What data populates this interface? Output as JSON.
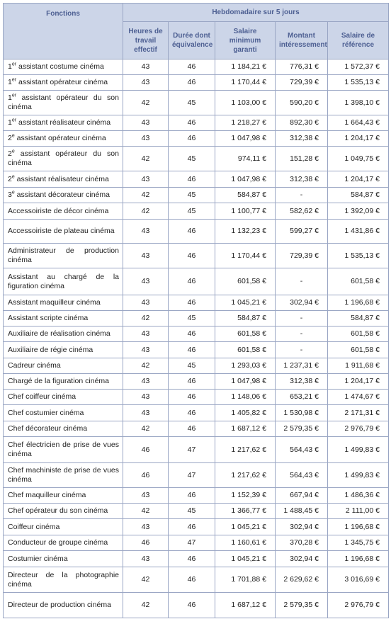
{
  "header": {
    "fonctions": "Fonctions",
    "group": "Hebdomadaire sur 5 jours",
    "columns": [
      "Heures de travail effectif",
      "Durée dont équivalence",
      "Salaire minimum garanti",
      "Montant intéressement",
      "Salaire de référence"
    ]
  },
  "table": {
    "rows": [
      [
        [
          "1",
          "er",
          " assistant costume cinéma"
        ],
        43,
        46,
        "1 184,21 €",
        "776,31 €",
        "1 572,37 €"
      ],
      [
        [
          "1",
          "er",
          " assistant opérateur cinéma"
        ],
        43,
        46,
        "1 170,44 €",
        "729,39 €",
        "1 535,13 €"
      ],
      [
        [
          "1",
          "er",
          " assistant opérateur du son cinéma"
        ],
        42,
        45,
        "1 103,00 €",
        "590,20 €",
        "1 398,10 €"
      ],
      [
        [
          "1",
          "er",
          " assistant réalisateur cinéma"
        ],
        43,
        46,
        "1 218,27 €",
        "892,30 €",
        "1 664,43 €"
      ],
      [
        [
          "2",
          "e",
          " assistant opérateur cinéma"
        ],
        43,
        46,
        "1 047,98 €",
        "312,38 €",
        "1 204,17 €"
      ],
      [
        [
          "2",
          "e",
          " assistant opérateur du son cinéma"
        ],
        42,
        45,
        "974,11 €",
        "151,28 €",
        "1 049,75 €"
      ],
      [
        [
          "2",
          "e",
          " assistant réalisateur cinéma"
        ],
        43,
        46,
        "1 047,98 €",
        "312,38 €",
        "1 204,17 €"
      ],
      [
        [
          "3",
          "e",
          " assistant décorateur cinéma"
        ],
        42,
        45,
        "584,87 €",
        "-",
        "584,87 €"
      ],
      [
        "Accessoiriste de décor cinéma",
        42,
        45,
        "1 100,77 €",
        "582,62 €",
        "1 392,09 €"
      ],
      [
        "Accessoiriste de plateau cinéma",
        43,
        46,
        "1 132,23 €",
        "599,27 €",
        "1 431,86 €"
      ],
      [
        "Administrateur de production cinéma",
        43,
        46,
        "1 170,44 €",
        "729,39 €",
        "1 535,13 €"
      ],
      [
        "Assistant au chargé de la figuration cinéma",
        43,
        46,
        "601,58 €",
        "-",
        "601,58 €"
      ],
      [
        "Assistant maquilleur cinéma",
        43,
        46,
        "1 045,21 €",
        "302,94 €",
        "1 196,68 €"
      ],
      [
        "Assistant scripte cinéma",
        42,
        45,
        "584,87 €",
        "-",
        "584,87 €"
      ],
      [
        "Auxiliaire de réalisation cinéma",
        43,
        46,
        "601,58 €",
        "-",
        "601,58 €"
      ],
      [
        "Auxiliaire de régie cinéma",
        43,
        46,
        "601,58 €",
        "-",
        "601,58 €"
      ],
      [
        "Cadreur cinéma",
        42,
        45,
        "1 293,03 €",
        "1 237,31 €",
        "1 911,68 €"
      ],
      [
        "Chargé de la figuration cinéma",
        43,
        46,
        "1 047,98 €",
        "312,38 €",
        "1 204,17 €"
      ],
      [
        "Chef coiffeur cinéma",
        43,
        46,
        "1 148,06 €",
        "653,21 €",
        "1 474,67 €"
      ],
      [
        "Chef costumier cinéma",
        43,
        46,
        "1 405,82 €",
        "1 530,98 €",
        "2 171,31 €"
      ],
      [
        "Chef décorateur cinéma",
        42,
        46,
        "1 687,12 €",
        "2 579,35 €",
        "2 976,79 €"
      ],
      [
        "Chef électricien de prise de vues cinéma",
        46,
        47,
        "1 217,62 €",
        "564,43 €",
        "1 499,83 €"
      ],
      [
        "Chef machiniste de prise de vues cinéma",
        46,
        47,
        "1 217,62 €",
        "564,43 €",
        "1 499,83 €"
      ],
      [
        "Chef maquilleur cinéma",
        43,
        46,
        "1 152,39 €",
        "667,94 €",
        "1 486,36 €"
      ],
      [
        "Chef opérateur du son cinéma",
        42,
        45,
        "1 366,77 €",
        "1 488,45 €",
        "2 111,00 €"
      ],
      [
        "Coiffeur cinéma",
        43,
        46,
        "1 045,21 €",
        "302,94 €",
        "1 196,68 €"
      ],
      [
        "Conducteur de groupe cinéma",
        46,
        47,
        "1 160,61 €",
        "370,28 €",
        "1 345,75 €"
      ],
      [
        "Costumier cinéma",
        43,
        46,
        "1 045,21 €",
        "302,94 €",
        "1 196,68 €"
      ],
      [
        "Directeur de la photographie cinéma",
        42,
        46,
        "1 701,88 €",
        "2 629,62 €",
        "3 016,69 €"
      ],
      [
        "Directeur de production cinéma",
        42,
        46,
        "1 687,12 €",
        "2 579,35 €",
        "2 976,79 €"
      ]
    ]
  }
}
